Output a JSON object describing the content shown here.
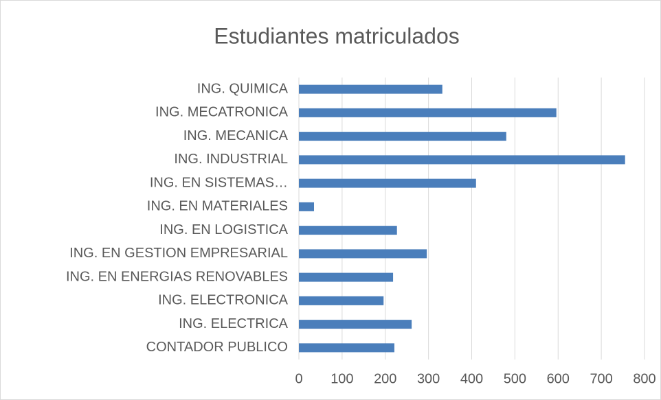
{
  "chart_data": {
    "type": "bar",
    "orientation": "horizontal",
    "title": "Estudiantes matriculados",
    "categories": [
      "ING. QUIMICA",
      "ING. MECATRONICA",
      "ING. MECANICA",
      "ING. INDUSTRIAL",
      "ING. EN SISTEMAS…",
      "ING. EN MATERIALES",
      "ING. EN LOGISTICA",
      "ING. EN GESTION EMPRESARIAL",
      "ING. EN ENERGIAS RENOVABLES",
      "ING. ELECTRONICA",
      "ING. ELECTRICA",
      "CONTADOR PUBLICO"
    ],
    "values": [
      332,
      596,
      480,
      755,
      410,
      35,
      227,
      296,
      218,
      196,
      261,
      221
    ],
    "color": "#4a7ebb",
    "xlim": [
      0,
      800
    ],
    "xticks": [
      0,
      100,
      200,
      300,
      400,
      500,
      600,
      700,
      800
    ],
    "grid": true
  }
}
